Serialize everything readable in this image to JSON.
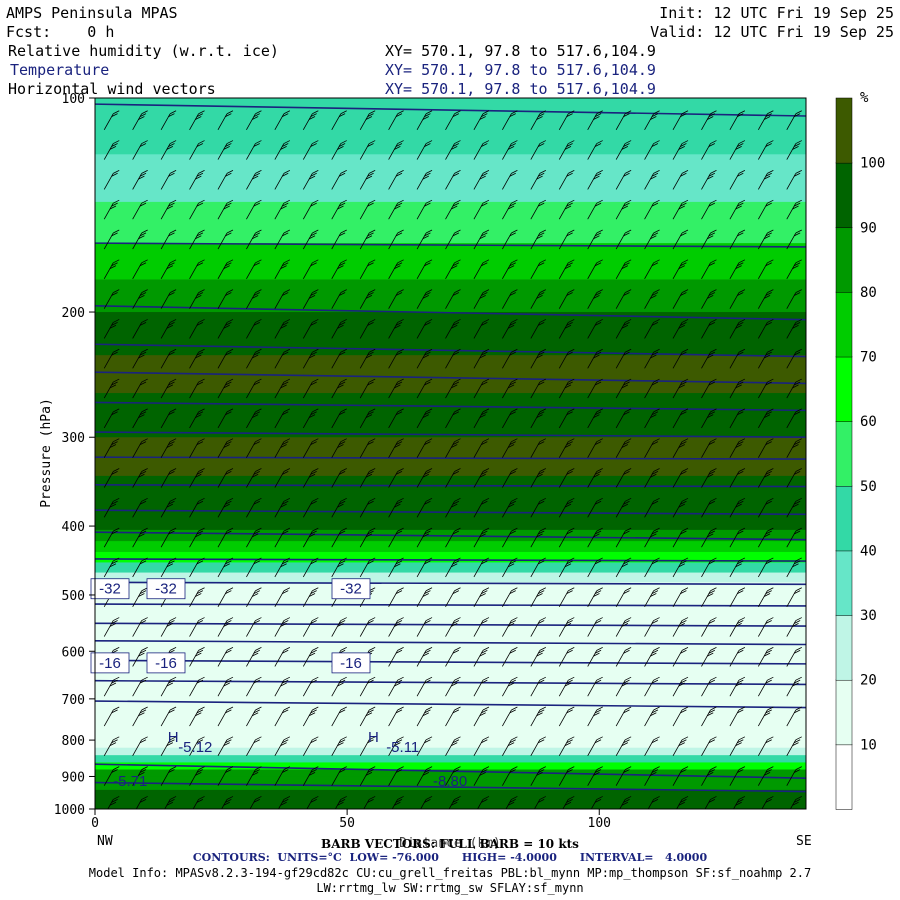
{
  "header": {
    "title": "AMPS Peninsula MPAS",
    "forecast": "Fcst:    0 h",
    "init": "Init: 12 UTC Fri 19 Sep 25",
    "valid": "Valid: 12 UTC Fri 19 Sep 25",
    "fields": [
      {
        "name": "Relative humidity (w.r.t. ice)",
        "xy": "XY= 570.1, 97.8 to 517.6,104.9",
        "color": "#000000"
      },
      {
        "name": "Temperature",
        "xy": "XY= 570.1, 97.8 to 517.6,104.9",
        "color": "#1a237e"
      },
      {
        "name": "Horizontal wind vectors",
        "xy": "XY= 570.1, 97.8 to 517.6,104.9",
        "color": "#000000"
      }
    ]
  },
  "colorbar": {
    "unit": "%",
    "levels": [
      10,
      20,
      30,
      40,
      50,
      60,
      70,
      80,
      90,
      100
    ],
    "colors": [
      "#ffffff",
      "#e6fff2",
      "#bff5e6",
      "#66e6c8",
      "#33d9a6",
      "#33f066",
      "#00ff00",
      "#00cc00",
      "#009900",
      "#006400",
      "#3d5a00"
    ]
  },
  "footer": {
    "barb": "BARB VECTORS: FULL BARB = 10 kts",
    "contours": "CONTOURS:  UNITS=°C  LOW= -76.000      HIGH= -4.0000      INTERVAL=   4.0000",
    "model_info": "Model Info: MPASv8.2.3-194-gf29cd82c CU:cu_grell_freitas PBL:bl_mynn MP:mp_thompson SF:sf_noahmp 2.7",
    "model_info2": "LW:rrtmg_lw SW:rrtmg_sw SFLAY:sf_mynn"
  },
  "chart_data": {
    "type": "heatmap",
    "subtype": "vertical cross-section",
    "xlabel": "Distance (km)",
    "ylabel": "Pressure (hPa)",
    "xlim": [
      0,
      141
    ],
    "ylim": [
      1000,
      100
    ],
    "yscale": "log",
    "x_ticks": [
      0,
      50,
      100
    ],
    "y_ticks": [
      100,
      200,
      300,
      400,
      500,
      600,
      700,
      800,
      900,
      1000
    ],
    "x_end_labels": {
      "left": "NW",
      "right": "SE"
    },
    "rh_bands": [
      {
        "p": 100,
        "rh": 40
      },
      {
        "p": 120,
        "rh": 35
      },
      {
        "p": 140,
        "rh": 55
      },
      {
        "p": 160,
        "rh": 75
      },
      {
        "p": 180,
        "rh": 88
      },
      {
        "p": 200,
        "rh": 95
      },
      {
        "p": 230,
        "rh": 102
      },
      {
        "p": 260,
        "rh": 95
      },
      {
        "p": 300,
        "rh": 100
      },
      {
        "p": 340,
        "rh": 95
      },
      {
        "p": 380,
        "rh": 90
      },
      {
        "p": 405,
        "rh": 82
      },
      {
        "p": 420,
        "rh": 74
      },
      {
        "p": 435,
        "rh": 66
      },
      {
        "p": 450,
        "rh": 45
      },
      {
        "p": 465,
        "rh": 25
      },
      {
        "p": 480,
        "rh": 10
      },
      {
        "p": 780,
        "rh": 10
      },
      {
        "p": 800,
        "rh": 18
      },
      {
        "p": 820,
        "rh": 28
      },
      {
        "p": 840,
        "rh": 45
      },
      {
        "p": 860,
        "rh": 65
      },
      {
        "p": 880,
        "rh": 80
      },
      {
        "p": 900,
        "rh": 88
      },
      {
        "p": 940,
        "rh": 95
      },
      {
        "p": 980,
        "rh": 92
      },
      {
        "p": 1000,
        "rh": 90
      }
    ],
    "isotherms": [
      {
        "left_p": 102,
        "right_p": 106
      },
      {
        "left_p": 160,
        "right_p": 162
      },
      {
        "left_p": 196,
        "right_p": 205
      },
      {
        "left_p": 222,
        "right_p": 231
      },
      {
        "left_p": 243,
        "right_p": 252
      },
      {
        "left_p": 268,
        "right_p": 275
      },
      {
        "left_p": 295,
        "right_p": 300
      },
      {
        "left_p": 320,
        "right_p": 322
      },
      {
        "left_p": 350,
        "right_p": 352
      },
      {
        "left_p": 380,
        "right_p": 385
      },
      {
        "left_p": 408,
        "right_p": 418
      },
      {
        "left_p": 445,
        "right_p": 448
      },
      {
        "left_p": 480,
        "right_p": 483
      },
      {
        "left_p": 515,
        "right_p": 518
      },
      {
        "left_p": 548,
        "right_p": 553
      },
      {
        "left_p": 580,
        "right_p": 587
      },
      {
        "left_p": 618,
        "right_p": 625
      },
      {
        "left_p": 660,
        "right_p": 668
      },
      {
        "left_p": 705,
        "right_p": 720
      },
      {
        "left_p": 865,
        "right_p": 905
      },
      {
        "left_p": 918,
        "right_p": 945
      }
    ],
    "contour_labels": [
      {
        "text": "-32",
        "x": 16,
        "p": 490
      },
      {
        "text": "-32",
        "x": 72,
        "p": 490
      },
      {
        "text": "-32",
        "x": 257,
        "p": 490
      },
      {
        "text": "-16",
        "x": 16,
        "p": 623
      },
      {
        "text": "-16",
        "x": 72,
        "p": 623
      },
      {
        "text": "-16",
        "x": 257,
        "p": 623
      }
    ],
    "annotations": [
      {
        "text": "H",
        "x": 28,
        "p": 792
      },
      {
        "text": "-5.12",
        "x": 32,
        "p": 818
      },
      {
        "text": "H",
        "x": 105,
        "p": 792
      },
      {
        "text": "-5.11",
        "x": 112,
        "p": 818
      },
      {
        "text": "-5.71",
        "x": 7,
        "p": 913
      },
      {
        "text": "-8.80",
        "x": 130,
        "p": 913
      }
    ],
    "wind_barbs": {
      "columns": 25,
      "rows_top_hpa": 108,
      "rows_bottom_hpa": 995,
      "direction": "from NW"
    }
  }
}
